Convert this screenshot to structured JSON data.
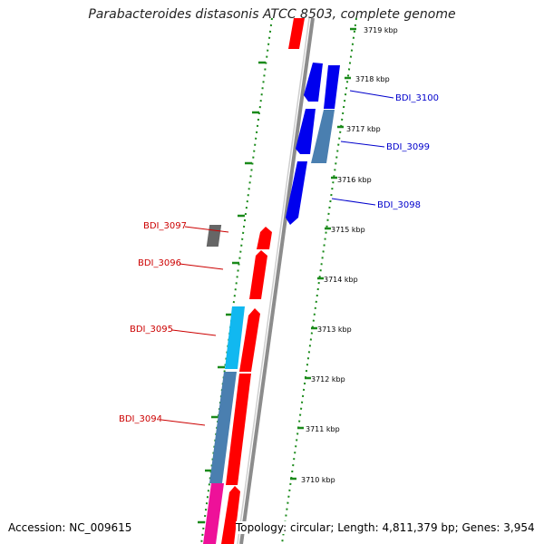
{
  "title": "Parabacteroides distasonis ATCC 8503, complete genome",
  "footer": {
    "accession": "Accession: NC_009615",
    "stats": "Topology: circular; Length: 4,811,379 bp; Genes: 3,954"
  },
  "colors": {
    "backbone": "#999999",
    "tick_green": "#1a8a1a",
    "forward_red": "#ff0000",
    "reverse_blue": "#0000ee",
    "steelblue": "#4a7fb0",
    "cyan": "#11b8f0",
    "gray": "#666666",
    "magenta": "#ee1199",
    "label_red": "#cc0000",
    "label_blue": "#0000cc"
  },
  "scale_labels": [
    "3719 kbp",
    "3718 kbp",
    "3717 kbp",
    "3716 kbp",
    "3715 kbp",
    "3714 kbp",
    "3713 kbp",
    "3712 kbp",
    "3711 kbp",
    "3710 kbp"
  ],
  "genes": [
    {
      "label": "BDI_3100",
      "strand": "reverse",
      "color_key": "reverse_blue"
    },
    {
      "label": "BDI_3099",
      "strand": "reverse",
      "color_key": "reverse_blue"
    },
    {
      "label": "BDI_3098",
      "strand": "reverse",
      "color_key": "reverse_blue"
    },
    {
      "label": "BDI_3097",
      "strand": "forward",
      "color_key": "gray"
    },
    {
      "label": "BDI_3096",
      "strand": "forward",
      "color_key": "forward_red"
    },
    {
      "label": "BDI_3095",
      "strand": "forward",
      "color_key": "cyan"
    },
    {
      "label": "BDI_3094",
      "strand": "forward",
      "color_key": "steelblue"
    }
  ]
}
